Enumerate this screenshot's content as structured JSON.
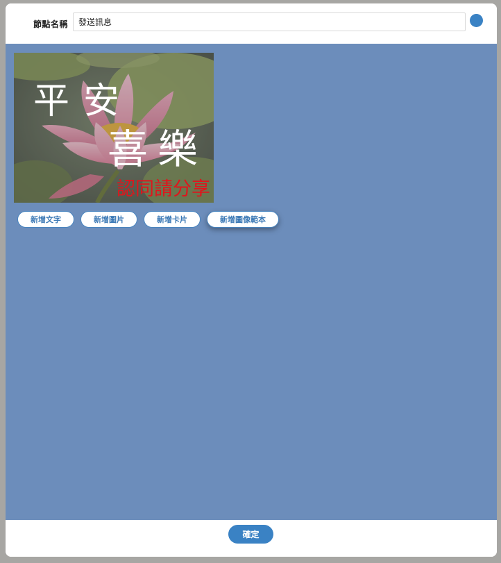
{
  "header": {
    "node_label": "節點名稱",
    "node_value": "發送訊息"
  },
  "preview": {
    "line1": "平安",
    "line2": "喜樂",
    "line3": "認同請分享"
  },
  "buttons": {
    "add_text": "新增文字",
    "add_image": "新增圖片",
    "add_card": "新增卡片",
    "add_image_template": "新增圖像範本"
  },
  "footer": {
    "confirm": "確定"
  },
  "colors": {
    "canvas_bg": "#6c8dbb",
    "accent": "#3a82c4",
    "overlay_red": "#e0151c"
  }
}
